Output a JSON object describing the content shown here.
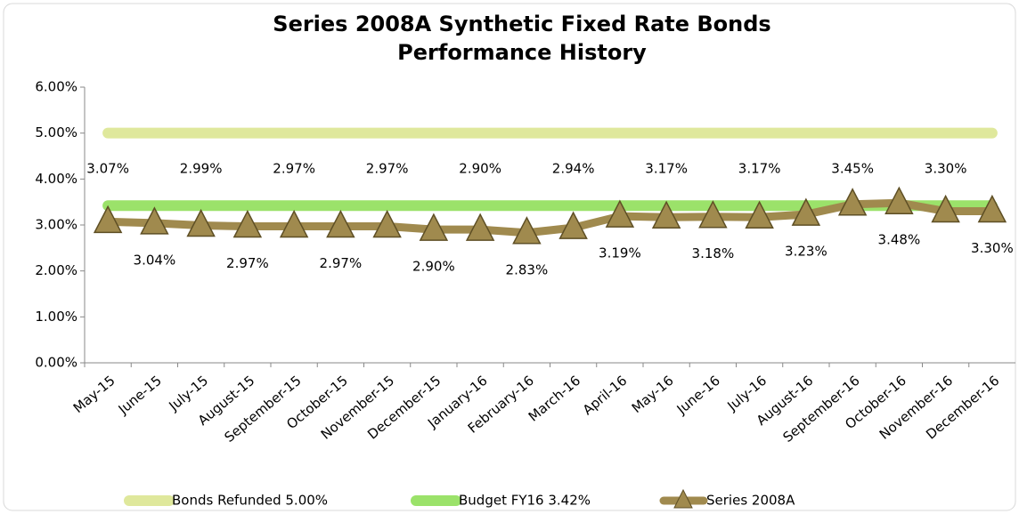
{
  "chart_data": {
    "type": "line",
    "title": "Series 2008A Synthetic Fixed Rate Bonds",
    "subtitle": "Performance History",
    "categories": [
      "May-15",
      "June-15",
      "July-15",
      "August-15",
      "September-15",
      "October-15",
      "November-15",
      "December-15",
      "January-16",
      "February-16",
      "March-16",
      "April-16",
      "May-16",
      "June-16",
      "July-16",
      "August-16",
      "September-16",
      "October-16",
      "November-16",
      "December-16"
    ],
    "series": [
      {
        "name": "Bonds Refunded 5.00%",
        "color": "#dfe89c",
        "width": 12,
        "values": [
          5,
          5,
          5,
          5,
          5,
          5,
          5,
          5,
          5,
          5,
          5,
          5,
          5,
          5,
          5,
          5,
          5,
          5,
          5,
          5
        ]
      },
      {
        "name": "Budget FY16 3.42%",
        "color": "#9be26a",
        "width": 12,
        "values": [
          3.42,
          3.42,
          3.42,
          3.42,
          3.42,
          3.42,
          3.42,
          3.42,
          3.42,
          3.42,
          3.42,
          3.42,
          3.42,
          3.42,
          3.42,
          3.42,
          3.42,
          3.42,
          3.42,
          3.42
        ]
      },
      {
        "name": "Series 2008A",
        "color": "#a08a4e",
        "width": 9,
        "markers": true,
        "values": [
          3.07,
          3.04,
          2.99,
          2.97,
          2.97,
          2.97,
          2.97,
          2.9,
          2.9,
          2.83,
          2.94,
          3.19,
          3.17,
          3.18,
          3.17,
          3.23,
          3.45,
          3.48,
          3.3,
          3.3
        ],
        "value_labels": [
          "3.07%",
          "3.04%",
          "2.99%",
          "2.97%",
          "2.97%",
          "2.97%",
          "2.97%",
          "2.90%",
          "2.90%",
          "2.83%",
          "2.94%",
          "3.19%",
          "3.17%",
          "3.18%",
          "3.17%",
          "3.23%",
          "3.45%",
          "3.48%",
          "3.30%",
          "3.30%"
        ]
      }
    ],
    "ylim": [
      0,
      6
    ],
    "yticks": [
      {
        "value": 0,
        "label": "0.00%"
      },
      {
        "value": 1,
        "label": "1.00%"
      },
      {
        "value": 2,
        "label": "2.00%"
      },
      {
        "value": 3,
        "label": "3.00%"
      },
      {
        "value": 4,
        "label": "4.00%"
      },
      {
        "value": 5,
        "label": "5.00%"
      },
      {
        "value": 6,
        "label": "6.00%"
      }
    ],
    "legend": "bottom"
  }
}
